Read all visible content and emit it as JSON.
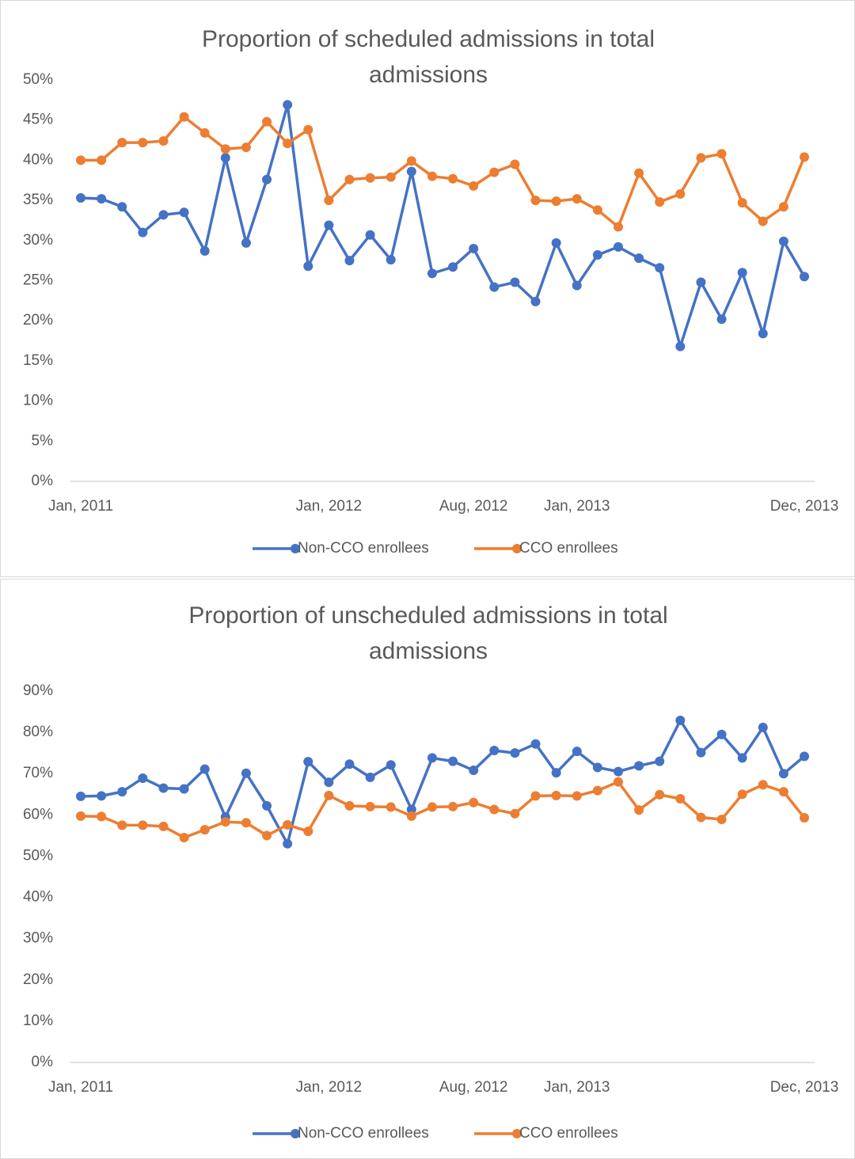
{
  "chart_data": [
    {
      "type": "line",
      "title": "Proportion of scheduled admissions in total admissions",
      "categories": [
        "Jan, 2011",
        null,
        null,
        null,
        null,
        null,
        null,
        null,
        null,
        null,
        null,
        null,
        "Jan, 2012",
        null,
        null,
        null,
        null,
        null,
        null,
        "Aug, 2012",
        null,
        null,
        null,
        null,
        "Jan, 2013",
        null,
        null,
        null,
        null,
        null,
        null,
        null,
        null,
        null,
        null,
        "Dec, 2013"
      ],
      "series": [
        {
          "name": "Non-CCO enrollees",
          "color": "#4472c4",
          "values": [
            35.3,
            35.2,
            34.2,
            31.0,
            33.2,
            33.5,
            28.7,
            40.3,
            29.7,
            37.6,
            46.9,
            26.8,
            31.9,
            27.5,
            30.7,
            27.6,
            38.6,
            25.9,
            26.7,
            29.0,
            24.2,
            24.8,
            22.4,
            29.7,
            24.4,
            28.2,
            29.2,
            27.8,
            26.6,
            16.8,
            24.8,
            20.2,
            26.0,
            18.4,
            29.9,
            25.5
          ]
        },
        {
          "name": "CCO enrollees",
          "color": "#ed7d31",
          "values": [
            40.0,
            40.0,
            42.2,
            42.2,
            42.4,
            45.4,
            43.4,
            41.4,
            41.6,
            44.8,
            42.1,
            43.8,
            35.0,
            37.6,
            37.8,
            37.9,
            39.9,
            38.0,
            37.7,
            36.8,
            38.5,
            39.5,
            35.0,
            34.9,
            35.2,
            33.8,
            31.7,
            38.4,
            34.8,
            35.8,
            40.3,
            40.8,
            34.7,
            32.4,
            34.2,
            40.4
          ]
        }
      ],
      "ylim": [
        0,
        50
      ],
      "yticks": [
        {
          "value": 0,
          "label": "0%"
        },
        {
          "value": 5,
          "label": "5%"
        },
        {
          "value": 10,
          "label": "10%"
        },
        {
          "value": 15,
          "label": "15%"
        },
        {
          "value": 20,
          "label": "20%"
        },
        {
          "value": 25,
          "label": "25%"
        },
        {
          "value": 30,
          "label": "30%"
        },
        {
          "value": 35,
          "label": "35%"
        },
        {
          "value": 40,
          "label": "40%"
        },
        {
          "value": 45,
          "label": "45%"
        },
        {
          "value": 50,
          "label": "50%"
        }
      ],
      "grid": false,
      "legend": "bottom"
    },
    {
      "type": "line",
      "title": "Proportion of unscheduled admissions in total admissions",
      "categories": [
        "Jan, 2011",
        null,
        null,
        null,
        null,
        null,
        null,
        null,
        null,
        null,
        null,
        null,
        "Jan, 2012",
        null,
        null,
        null,
        null,
        null,
        null,
        "Aug, 2012",
        null,
        null,
        null,
        null,
        "Jan, 2013",
        null,
        null,
        null,
        null,
        null,
        null,
        null,
        null,
        null,
        null,
        "Dec, 2013"
      ],
      "series": [
        {
          "name": "Non-CCO enrollees",
          "color": "#4472c4",
          "values": [
            64.5,
            64.6,
            65.6,
            68.9,
            66.5,
            66.3,
            71.1,
            59.5,
            70.1,
            62.2,
            53.0,
            72.9,
            67.9,
            72.3,
            69.1,
            72.1,
            61.3,
            73.8,
            73.0,
            70.8,
            75.6,
            75.0,
            77.2,
            70.2,
            75.4,
            71.5,
            70.5,
            71.9,
            73.0,
            82.9,
            75.1,
            79.5,
            73.8,
            81.2,
            70.0,
            74.2
          ]
        },
        {
          "name": "CCO enrollees",
          "color": "#ed7d31",
          "values": [
            59.7,
            59.6,
            57.5,
            57.5,
            57.2,
            54.5,
            56.4,
            58.3,
            58.1,
            55.0,
            57.6,
            56.0,
            64.7,
            62.2,
            62.0,
            61.9,
            59.7,
            61.9,
            62.0,
            63.0,
            61.3,
            60.3,
            64.6,
            64.7,
            64.6,
            65.9,
            68.0,
            61.2,
            64.9,
            63.9,
            59.4,
            58.9,
            65.0,
            67.3,
            65.6,
            59.3
          ]
        }
      ],
      "ylim": [
        0,
        90
      ],
      "yticks": [
        {
          "value": 0,
          "label": "0%"
        },
        {
          "value": 10,
          "label": "10%"
        },
        {
          "value": 20,
          "label": "20%"
        },
        {
          "value": 30,
          "label": "30%"
        },
        {
          "value": 40,
          "label": "40%"
        },
        {
          "value": 50,
          "label": "50%"
        },
        {
          "value": 60,
          "label": "60%"
        },
        {
          "value": 70,
          "label": "70%"
        },
        {
          "value": 80,
          "label": "80%"
        },
        {
          "value": 90,
          "label": "90%"
        }
      ],
      "grid": false,
      "legend": "bottom"
    }
  ]
}
